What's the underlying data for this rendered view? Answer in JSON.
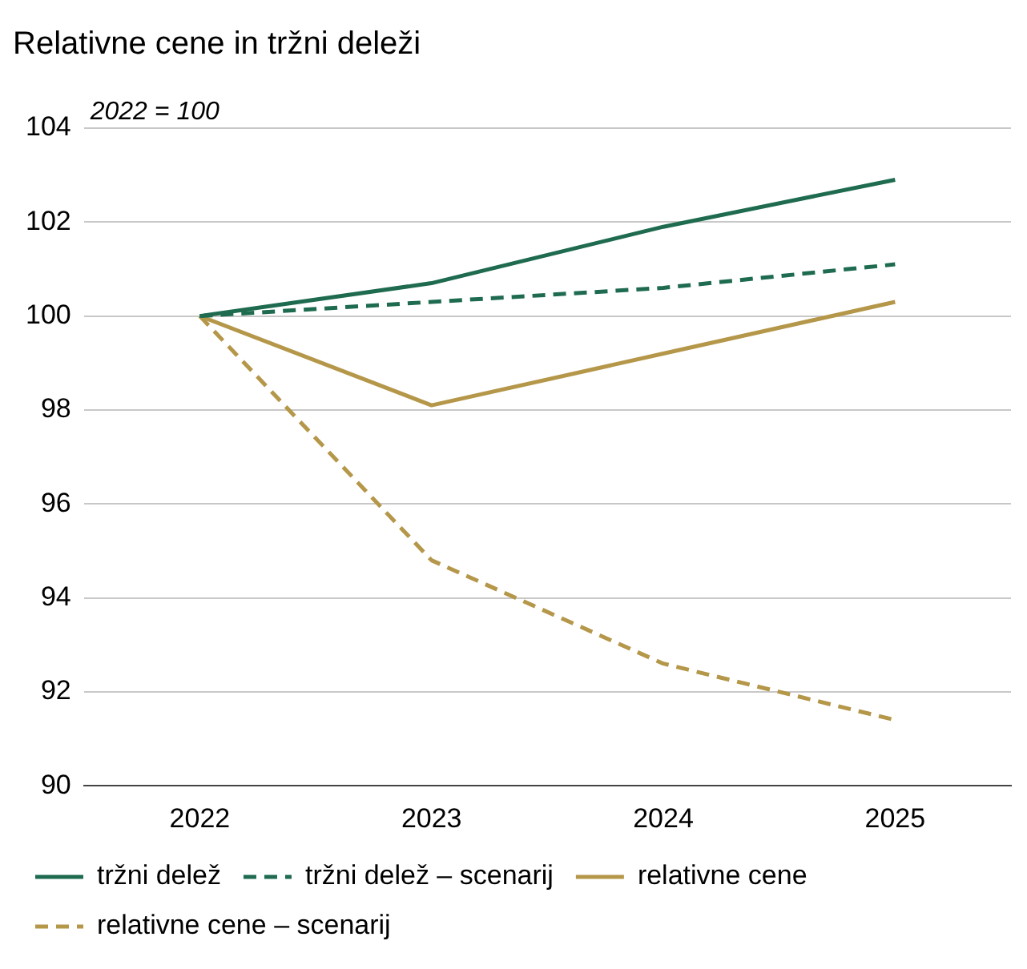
{
  "chart_data": {
    "type": "line",
    "title": "Relativne cene in tržni deleži",
    "annotations": [
      "2022 = 100"
    ],
    "categories": [
      "2022",
      "2023",
      "2024",
      "2025"
    ],
    "series": [
      {
        "name": "tržni delež",
        "color": "#1e6b4f",
        "values": [
          100,
          100.7,
          101.9,
          102.9
        ],
        "line_style": "solid"
      },
      {
        "name": "tržni delež – scenarij",
        "color": "#1e6b4f",
        "values": [
          100,
          100.3,
          100.6,
          101.1
        ],
        "line_style": "dashed"
      },
      {
        "name": "relativne cene",
        "color": "#b5974a",
        "values": [
          100,
          98.1,
          99.2,
          100.3
        ],
        "line_style": "solid"
      },
      {
        "name": "relativne cene – scenarij",
        "color": "#b5974a",
        "values": [
          100,
          94.8,
          92.6,
          91.4
        ],
        "line_style": "dashed"
      }
    ],
    "ylim": [
      90,
      104
    ],
    "yticks": [
      90,
      92,
      94,
      96,
      98,
      100,
      102,
      104
    ],
    "grid": "y",
    "legend": "bottom",
    "marker": "none"
  }
}
